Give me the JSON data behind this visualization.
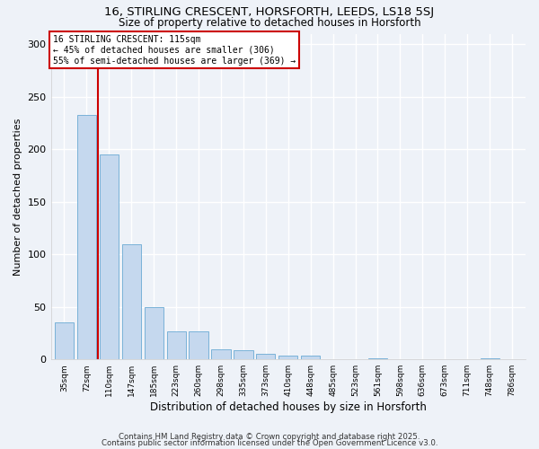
{
  "title": "16, STIRLING CRESCENT, HORSFORTH, LEEDS, LS18 5SJ",
  "subtitle": "Size of property relative to detached houses in Horsforth",
  "xlabel": "Distribution of detached houses by size in Horsforth",
  "ylabel": "Number of detached properties",
  "categories": [
    "35sqm",
    "72sqm",
    "110sqm",
    "147sqm",
    "185sqm",
    "223sqm",
    "260sqm",
    "298sqm",
    "335sqm",
    "373sqm",
    "410sqm",
    "448sqm",
    "485sqm",
    "523sqm",
    "561sqm",
    "598sqm",
    "636sqm",
    "673sqm",
    "711sqm",
    "748sqm",
    "786sqm"
  ],
  "values": [
    35,
    233,
    195,
    110,
    50,
    27,
    27,
    10,
    9,
    5,
    4,
    4,
    0,
    0,
    1,
    0,
    0,
    0,
    0,
    1,
    0
  ],
  "bar_color": "#c5d8ee",
  "bar_edgecolor": "#6aaad4",
  "background_color": "#eef2f8",
  "grid_color": "#ffffff",
  "vline_x": 1.5,
  "vline_color": "#cc0000",
  "annotation_text": "16 STIRLING CRESCENT: 115sqm\n← 45% of detached houses are smaller (306)\n55% of semi-detached houses are larger (369) →",
  "annotation_box_color": "#ffffff",
  "annotation_box_edgecolor": "#cc0000",
  "ylim": [
    0,
    310
  ],
  "yticks": [
    0,
    50,
    100,
    150,
    200,
    250,
    300
  ],
  "footer1": "Contains HM Land Registry data © Crown copyright and database right 2025.",
  "footer2": "Contains public sector information licensed under the Open Government Licence v3.0."
}
